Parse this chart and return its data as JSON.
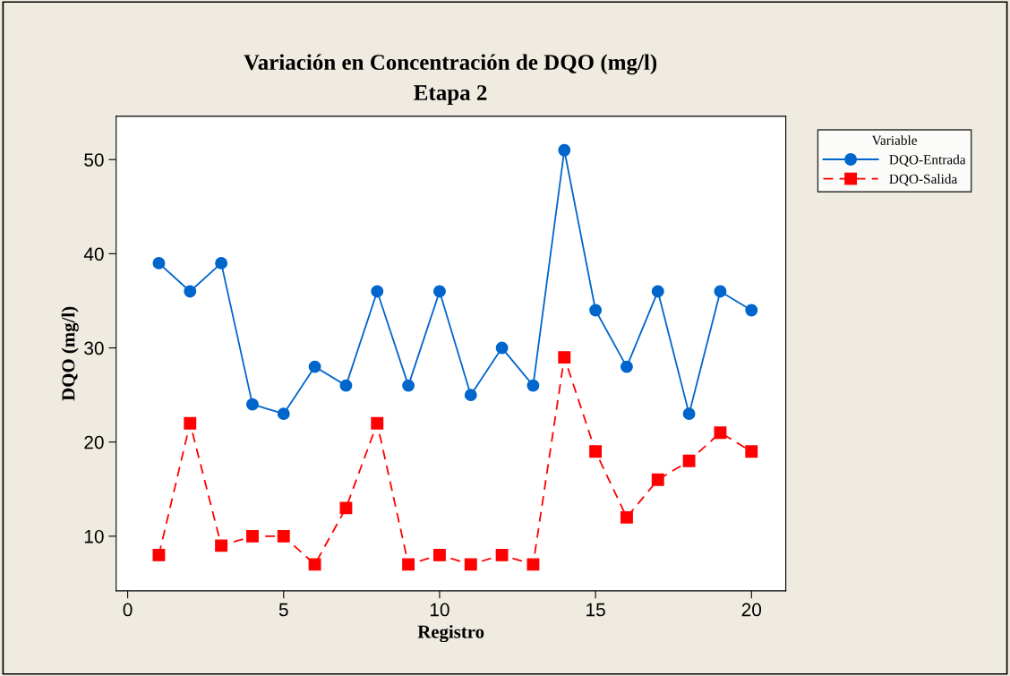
{
  "chart_data": {
    "type": "line",
    "title": "Variación en Concentración de DQO (mg/l)",
    "subtitle": "Etapa 2",
    "xlabel": "Registro",
    "ylabel": "DQO (mg/l)",
    "legend_title": "Variable",
    "x": [
      1,
      2,
      3,
      4,
      5,
      6,
      7,
      8,
      9,
      10,
      11,
      12,
      13,
      14,
      15,
      16,
      17,
      18,
      19,
      20
    ],
    "series": [
      {
        "name": "DQO-Entrada",
        "color": "#0066cc",
        "marker": "circle",
        "line_style": "solid",
        "values": [
          39,
          36,
          39,
          24,
          23,
          28,
          26,
          36,
          26,
          36,
          25,
          30,
          26,
          51,
          34,
          28,
          36,
          23,
          36,
          34
        ]
      },
      {
        "name": "DQO-Salida",
        "color": "#ff0000",
        "marker": "square",
        "line_style": "dashed",
        "values": [
          8,
          22,
          9,
          10,
          10,
          7,
          13,
          22,
          7,
          8,
          7,
          8,
          7,
          29,
          19,
          12,
          16,
          18,
          21,
          19
        ]
      }
    ],
    "xlim": [
      -0.37,
      21.1
    ],
    "xticks": [
      0,
      5,
      10,
      15,
      20
    ],
    "ylim": [
      4.2,
      54.6
    ],
    "yticks": [
      10,
      20,
      30,
      40,
      50
    ],
    "grid": false,
    "legend": "top right"
  }
}
